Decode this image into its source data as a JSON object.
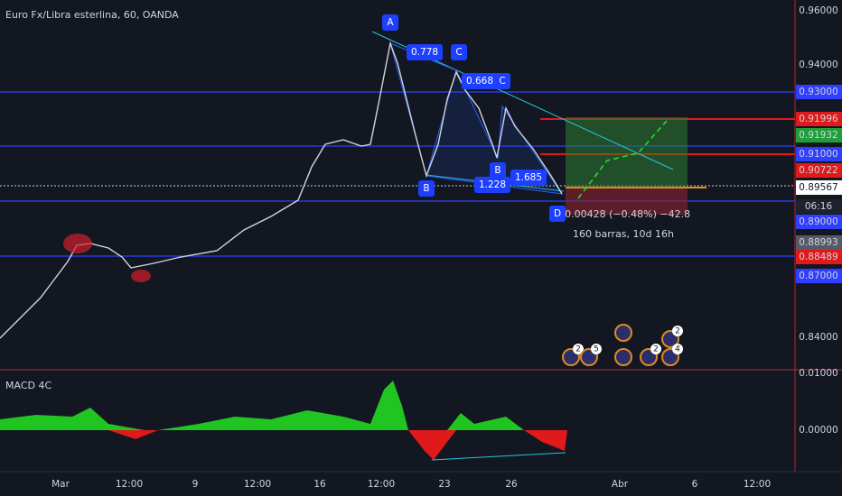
{
  "header": {
    "title": "Euro Fx/Libra esterlina, 60, OANDA"
  },
  "price_axis": {
    "labels": [
      "0.96000",
      "0.94000",
      "0.93000",
      "0.91996",
      "0.91932",
      "0.91000",
      "0.90722",
      "0.89567",
      "06:16",
      "0.89000",
      "0.88993",
      "0.88489",
      "0.87000",
      "0.84000"
    ]
  },
  "macd_axis": {
    "labels": [
      "0.01000",
      "0.00000"
    ]
  },
  "time_axis": {
    "labels": [
      "Mar",
      "12:00",
      "9",
      "12:00",
      "16",
      "12:00",
      "23",
      "26",
      "Abr",
      "6",
      "12:00"
    ]
  },
  "pattern": {
    "points": [
      "A",
      "C",
      "C",
      "B",
      "B",
      "D"
    ],
    "ratios": [
      "0.778",
      "0.668",
      "1.228",
      "1.685"
    ]
  },
  "measure": {
    "change": "−0.00428 (−0.48%) −42.8",
    "span": "160 barras, 10d 16h"
  },
  "indicator": {
    "name": "MACD 4C"
  },
  "events": {
    "counts": [
      "2",
      "5",
      "2",
      "2",
      "4"
    ]
  }
}
